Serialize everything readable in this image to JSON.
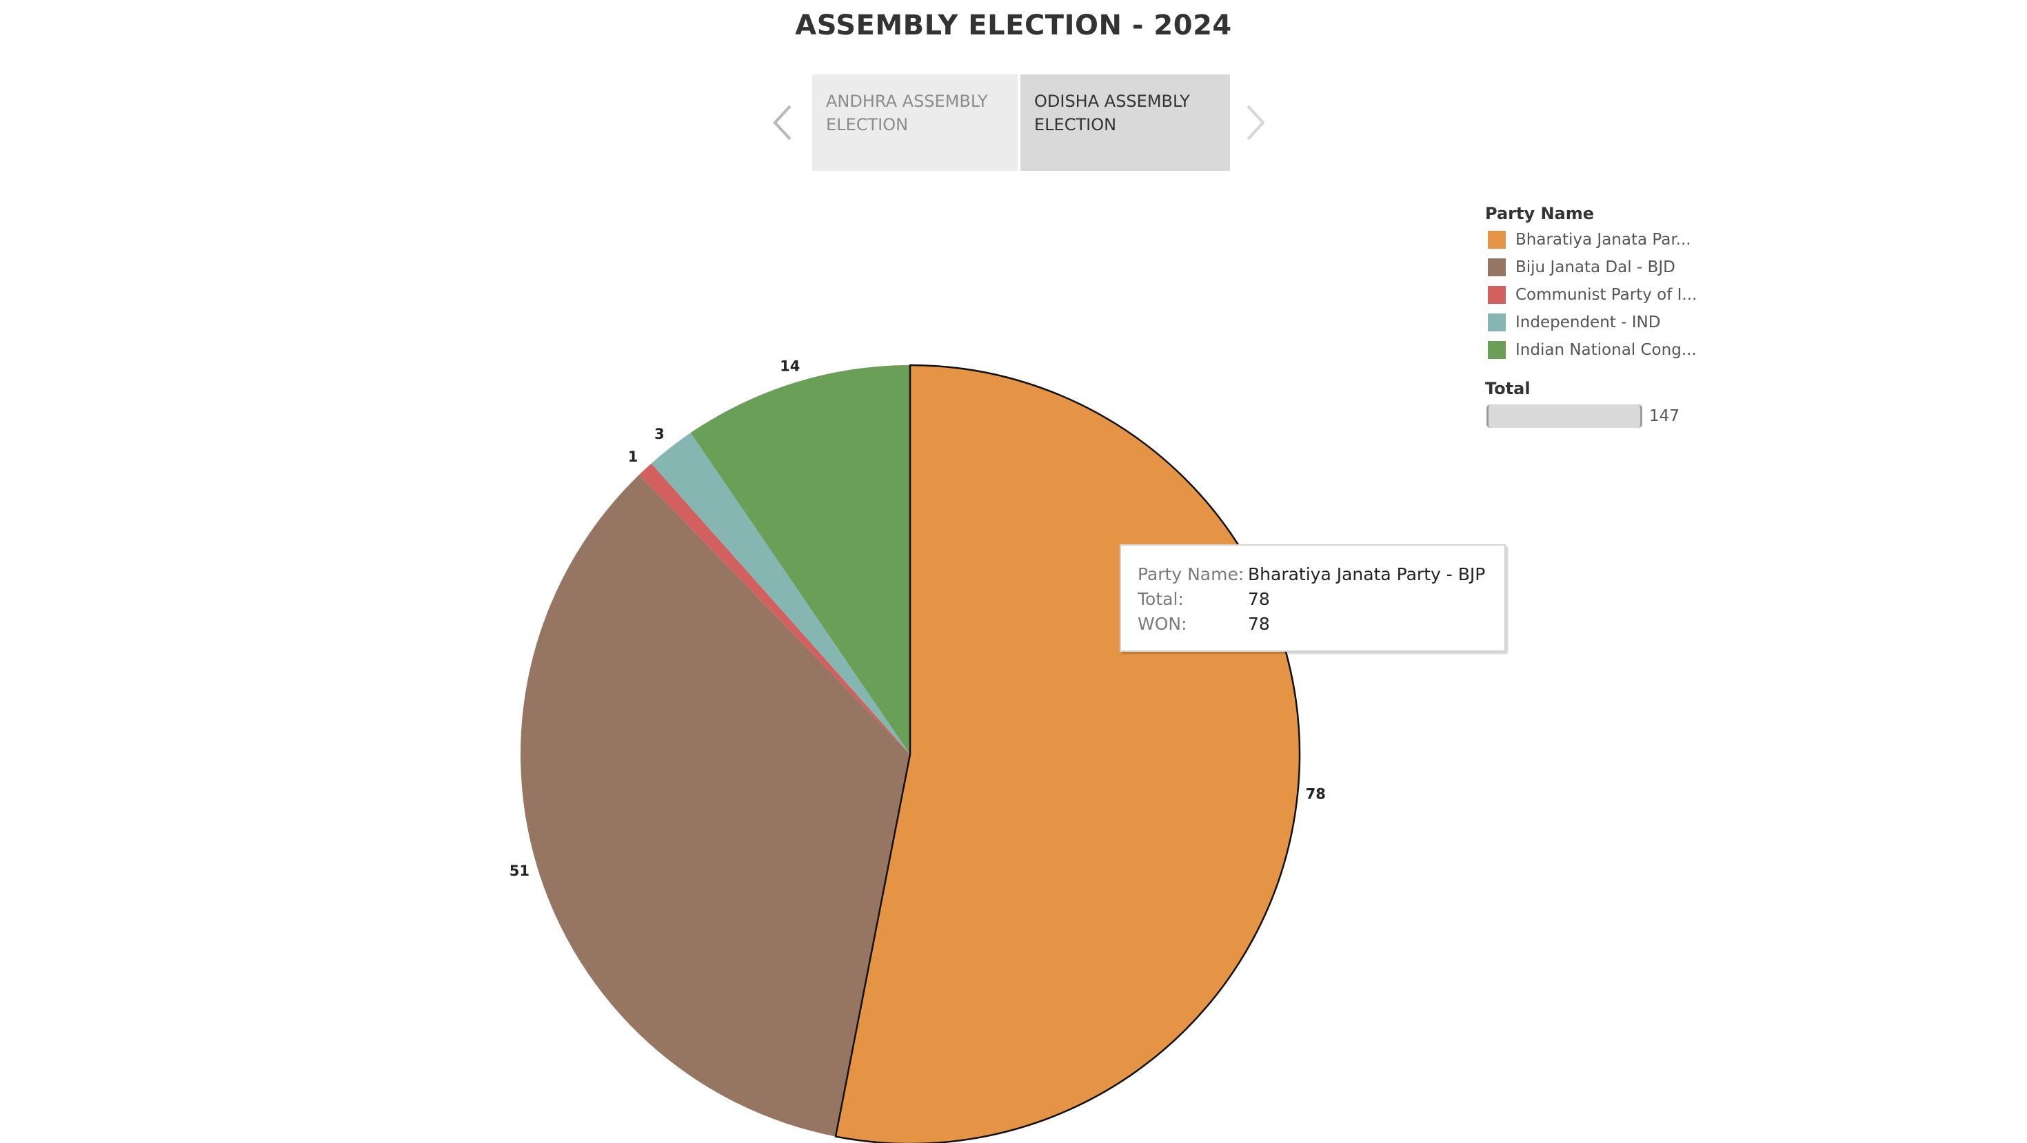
{
  "page": {
    "title": "ASSEMBLY ELECTION - 2024"
  },
  "tabs": [
    {
      "label": "ANDHRA ASSEMBLY ELECTION",
      "active": false
    },
    {
      "label": "ODISHA ASSEMBLY ELECTION",
      "active": true
    }
  ],
  "nav": {
    "prev_icon": "chevron-left-icon",
    "next_icon": "chevron-right-icon"
  },
  "legend": {
    "title": "Party Name",
    "items": [
      {
        "label": "Bharatiya Janata Par...",
        "color": "#E49444"
      },
      {
        "label": "Biju Janata Dal - BJD",
        "color": "#967662"
      },
      {
        "label": "Communist Party of I...",
        "color": "#D1605E"
      },
      {
        "label": "Independent - IND",
        "color": "#85B6B2"
      },
      {
        "label": "Indian National Cong...",
        "color": "#6A9F58"
      }
    ],
    "size_title": "Total",
    "size_value": "147"
  },
  "tooltip": {
    "rows": [
      {
        "key": "Party Name:",
        "value": "Bharatiya Janata Party - BJP"
      },
      {
        "key": "Total:",
        "value": "78"
      },
      {
        "key": "WON:",
        "value": "78"
      }
    ]
  },
  "chart_data": {
    "type": "pie",
    "title": "",
    "categories": [
      "Bharatiya Janata Party - BJP",
      "Biju Janata Dal - BJD",
      "Communist Party of I...",
      "Independent - IND",
      "Indian National Cong..."
    ],
    "values": [
      78,
      51,
      1,
      3,
      14
    ],
    "labels": [
      "78",
      "51",
      "1",
      "3",
      "14"
    ],
    "colors": [
      "#E49444",
      "#967662",
      "#D1605E",
      "#85B6B2",
      "#6A9F58"
    ],
    "highlighted": "Bharatiya Janata Party - BJP",
    "legend_placement": "top-right"
  }
}
